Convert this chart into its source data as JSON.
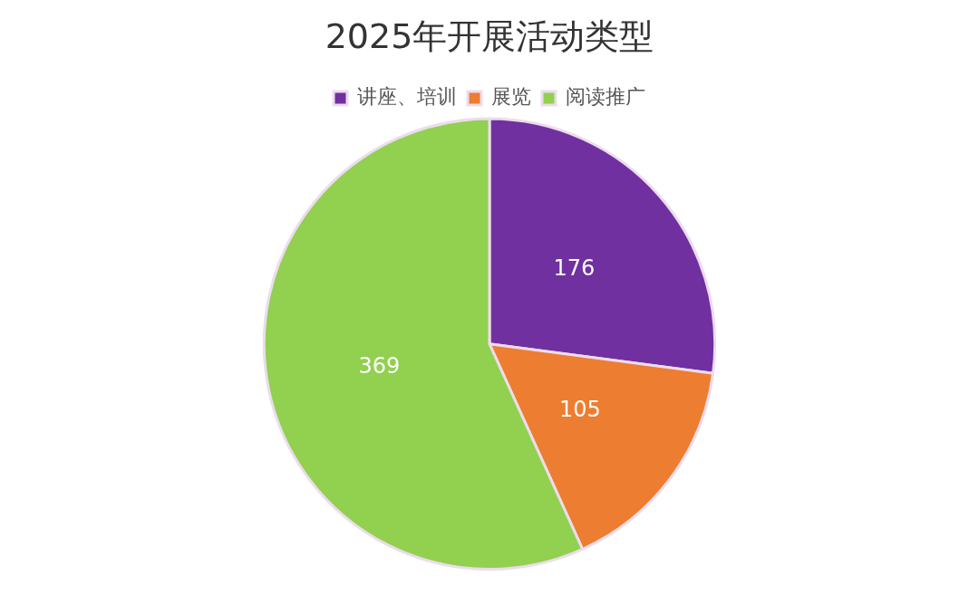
{
  "chart_data": {
    "type": "pie",
    "title": "2025年开展活动类型",
    "categories": [
      "讲座、培训",
      "展览",
      "阅读推广"
    ],
    "values": [
      176,
      105,
      369
    ],
    "colors": [
      "#7030a0",
      "#ed7d31",
      "#92d050"
    ],
    "legend": "top",
    "data_labels": true
  }
}
